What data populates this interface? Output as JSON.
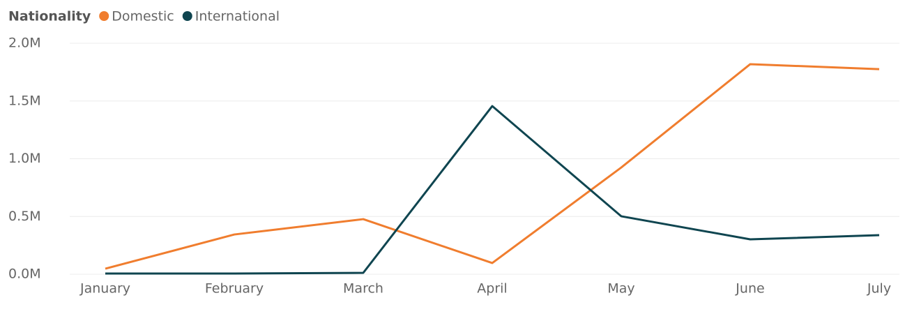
{
  "chart_data": {
    "type": "line",
    "legend_title": "Nationality",
    "categories": [
      "January",
      "February",
      "March",
      "April",
      "May",
      "June",
      "July"
    ],
    "series": [
      {
        "name": "Domestic",
        "color": "#f07d2e",
        "values": [
          0.048,
          0.344,
          0.477,
          0.097,
          0.924,
          1.819,
          1.776
        ]
      },
      {
        "name": "International",
        "color": "#0f4550",
        "values": [
          0.006,
          0.006,
          0.012,
          1.456,
          0.502,
          0.302,
          0.338
        ]
      }
    ],
    "ylim": [
      0,
      2
    ],
    "yticks": [
      {
        "value": 0,
        "label": "0.0M"
      },
      {
        "value": 0.5,
        "label": "0.5M"
      },
      {
        "value": 1,
        "label": "1.0M"
      },
      {
        "value": 1.5,
        "label": "1.5M"
      },
      {
        "value": 2,
        "label": "2.0M"
      }
    ],
    "grid": true,
    "legend": "top-left"
  }
}
